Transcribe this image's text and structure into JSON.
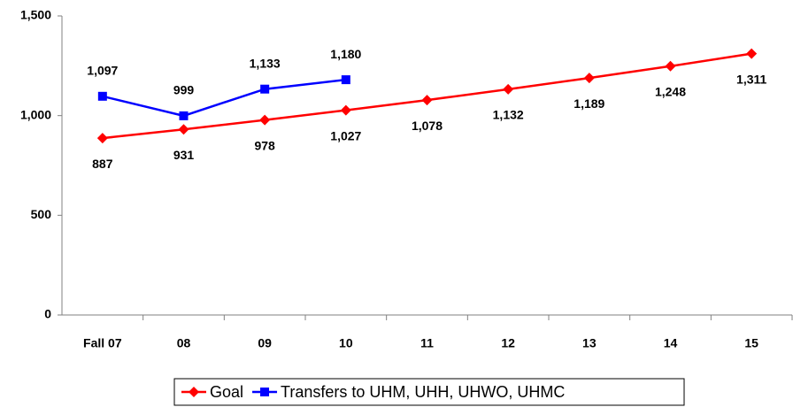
{
  "chart_data": {
    "type": "line",
    "categories": [
      "Fall 07",
      "08",
      "09",
      "10",
      "11",
      "12",
      "13",
      "14",
      "15"
    ],
    "series": [
      {
        "name": "Goal",
        "color": "#ff0000",
        "marker": "diamond",
        "values": [
          887,
          931,
          978,
          1027,
          1078,
          1132,
          1189,
          1248,
          1311
        ],
        "value_labels": [
          "887",
          "931",
          "978",
          "1,027",
          "1,078",
          "1,132",
          "1,189",
          "1,248",
          "1,311"
        ]
      },
      {
        "name": "Transfers to UHM, UHH, UHWO, UHMC",
        "color": "#0000ff",
        "marker": "square",
        "values": [
          1097,
          999,
          1133,
          1180,
          null,
          null,
          null,
          null,
          null
        ],
        "value_labels": [
          "1,097",
          "999",
          "1,133",
          "1,180",
          null,
          null,
          null,
          null,
          null
        ]
      }
    ],
    "ylim": [
      0,
      1500
    ],
    "yticks": [
      0,
      500,
      {
        "value": 1000,
        "label": "1,000"
      },
      {
        "value": 1500,
        "label": "1,500"
      }
    ],
    "grid": false,
    "legend": "bottom"
  }
}
